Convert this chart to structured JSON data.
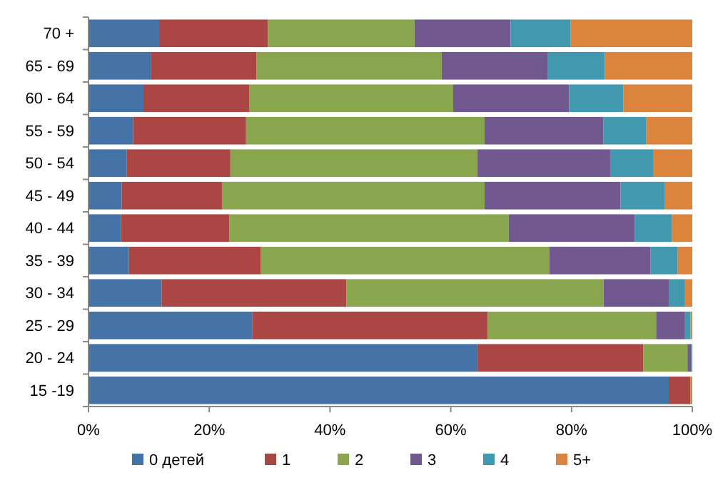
{
  "chart_data": {
    "type": "bar",
    "orientation": "horizontal",
    "stacked": true,
    "categories": [
      "70  +",
      "65 - 69",
      "60 - 64",
      "55 - 59",
      "50 - 54",
      "45 - 49",
      "40 - 44",
      "35 - 39",
      "30 - 34",
      "25 - 29",
      "20 - 24",
      "15 -19"
    ],
    "series": [
      {
        "name": "0 детей",
        "color": "#4572a7",
        "values": [
          11.7,
          10.3,
          9.1,
          7.4,
          6.3,
          5.5,
          5.4,
          6.7,
          12.1,
          27.1,
          64.4,
          96.1
        ]
      },
      {
        "name": "1",
        "color": "#aa4643",
        "values": [
          18.0,
          17.5,
          17.5,
          18.7,
          17.2,
          16.6,
          17.9,
          21.8,
          30.6,
          39.0,
          27.5,
          3.6
        ]
      },
      {
        "name": "2",
        "color": "#89a54e",
        "values": [
          24.3,
          30.7,
          33.8,
          39.5,
          40.9,
          43.5,
          46.3,
          47.8,
          42.6,
          27.9,
          7.3,
          0.3
        ]
      },
      {
        "name": "3",
        "color": "#71588f",
        "values": [
          15.9,
          17.5,
          19.2,
          19.7,
          22.0,
          22.5,
          20.9,
          16.8,
          10.8,
          4.7,
          0.6,
          0
        ]
      },
      {
        "name": "4",
        "color": "#4198af",
        "values": [
          9.9,
          9.5,
          9.0,
          7.1,
          7.1,
          7.3,
          6.1,
          4.5,
          2.6,
          1.0,
          0.2,
          0
        ]
      },
      {
        "name": "5+",
        "color": "#db843d",
        "values": [
          20.2,
          14.5,
          11.4,
          7.6,
          6.5,
          4.6,
          3.4,
          2.4,
          1.3,
          0.3,
          0,
          0
        ]
      }
    ],
    "xlim": [
      0,
      100
    ],
    "xticks": [
      {
        "value": 0,
        "label": "0%"
      },
      {
        "value": 20,
        "label": "20%"
      },
      {
        "value": 40,
        "label": "40%"
      },
      {
        "value": 60,
        "label": "60%"
      },
      {
        "value": 80,
        "label": "80%"
      },
      {
        "value": 100,
        "label": "100%"
      }
    ],
    "legend": "bottom"
  }
}
